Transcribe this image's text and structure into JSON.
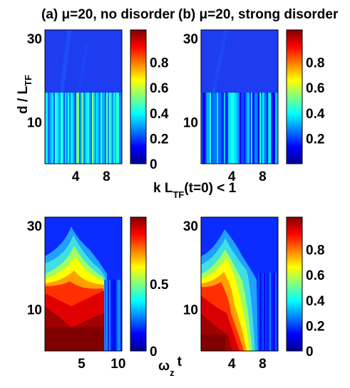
{
  "figure": {
    "shared_ylabel": "d / L",
    "shared_ylabel_sub": "TF",
    "middle_xlabel_pre": "k L",
    "middle_xlabel_sub": "TF",
    "middle_xlabel_post": "(t=0) < 1",
    "bottom_xlabel": "ω",
    "bottom_xlabel_sub": "z",
    "bottom_xlabel_post": "t",
    "colormap": [
      "#00008f",
      "#0000ff",
      "#00ffff",
      "#ffff00",
      "#ff0000",
      "#800000"
    ]
  },
  "chart_data": [
    {
      "type": "heatmap",
      "title": "(a) μ=20, no disorder",
      "xticks": [
        "4",
        "8"
      ],
      "yticks": [
        "30",
        "10"
      ],
      "xlim": [
        0,
        10
      ],
      "ylim": [
        0,
        32
      ],
      "colorbar_ticks": [
        "0.8",
        "0.6",
        "0.4",
        "0.2",
        "0"
      ],
      "colorbar_range": [
        0,
        1
      ],
      "description_values": {
        "upper_band_value": 0.05,
        "lower_band_value": 0.35,
        "band_boundary_y": 17
      }
    },
    {
      "type": "heatmap",
      "title": "(b) μ=20, strong disorder",
      "xticks": [
        "4",
        "8"
      ],
      "yticks": [
        "30",
        "10"
      ],
      "xlim": [
        0,
        10
      ],
      "ylim": [
        0,
        32
      ],
      "colorbar_ticks": [
        "0.8",
        "0.6",
        "0.4",
        "0.2"
      ],
      "colorbar_range": [
        0,
        1
      ],
      "description_values": {
        "upper_band_value": 0.06,
        "lower_band_value": 0.25,
        "band_boundary_y": 17
      }
    },
    {
      "type": "heatmap",
      "title": "",
      "xticks": [
        "5",
        "10"
      ],
      "yticks": [
        "30",
        "10"
      ],
      "xlim": [
        0,
        10.5
      ],
      "ylim": [
        0,
        32
      ],
      "colorbar_ticks": [
        "0.5",
        "0"
      ],
      "colorbar_range": [
        0,
        1
      ],
      "description_values": {
        "peak_value": 0.95,
        "peak_center_x": 4.5,
        "front_top_y": 26
      }
    },
    {
      "type": "heatmap",
      "title": "",
      "xticks": [
        "4",
        "8"
      ],
      "yticks": [
        "30",
        "10"
      ],
      "xlim": [
        0,
        10
      ],
      "ylim": [
        0,
        32
      ],
      "colorbar_ticks": [
        "0.8",
        "0.6",
        "0.4",
        "0.2",
        "0"
      ],
      "colorbar_range": [
        0,
        1
      ],
      "description_values": {
        "peak_value": 0.95,
        "peak_center_x": 3.5,
        "front_top_y": 26
      }
    }
  ]
}
